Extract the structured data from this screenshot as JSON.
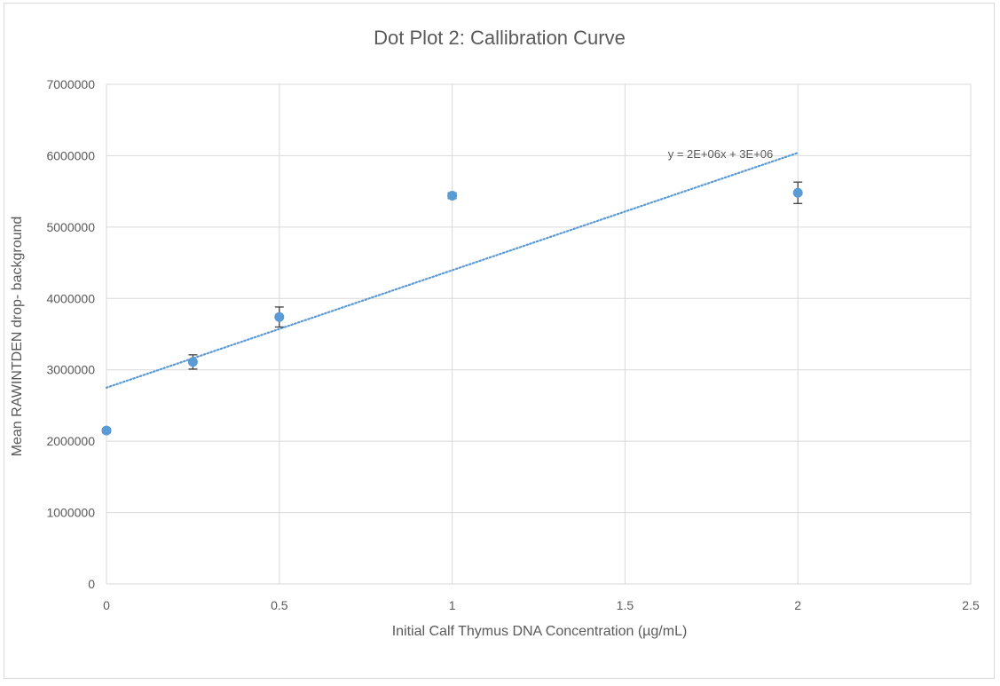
{
  "chart_data": {
    "type": "scatter",
    "title": "Dot Plot 2: Callibration Curve",
    "xlabel": "Initial Calf Thymus DNA Concentration (µg/mL)",
    "ylabel": "Mean RAWINTDEN drop- background",
    "xlim": [
      0,
      2.5
    ],
    "ylim": [
      0,
      7000000
    ],
    "x_ticks": [
      0,
      0.5,
      1,
      1.5,
      2,
      2.5
    ],
    "x_tick_labels": [
      "0",
      "0.5",
      "1",
      "1.5",
      "2",
      "2.5"
    ],
    "y_ticks": [
      0,
      1000000,
      2000000,
      3000000,
      4000000,
      5000000,
      6000000,
      7000000
    ],
    "y_tick_labels": [
      "0",
      "1000000",
      "2000000",
      "3000000",
      "4000000",
      "5000000",
      "6000000",
      "7000000"
    ],
    "grid": true,
    "series": [
      {
        "color": "#5b9bd5",
        "points": [
          {
            "x": 0,
            "y": 2150000,
            "err": 30000
          },
          {
            "x": 0.25,
            "y": 3110000,
            "err": 100000
          },
          {
            "x": 0.5,
            "y": 3740000,
            "err": 140000
          },
          {
            "x": 1,
            "y": 5440000,
            "err": 40000
          },
          {
            "x": 2,
            "y": 5480000,
            "err": 150000
          }
        ]
      }
    ],
    "trendline": {
      "type": "linear",
      "x_range": [
        0,
        2
      ],
      "y_at_start": 2750000,
      "y_at_end": 6040000,
      "color": "#5b9bd5",
      "style": "dotted",
      "equation_label": "y = 2E+06x + 3E+06"
    }
  }
}
